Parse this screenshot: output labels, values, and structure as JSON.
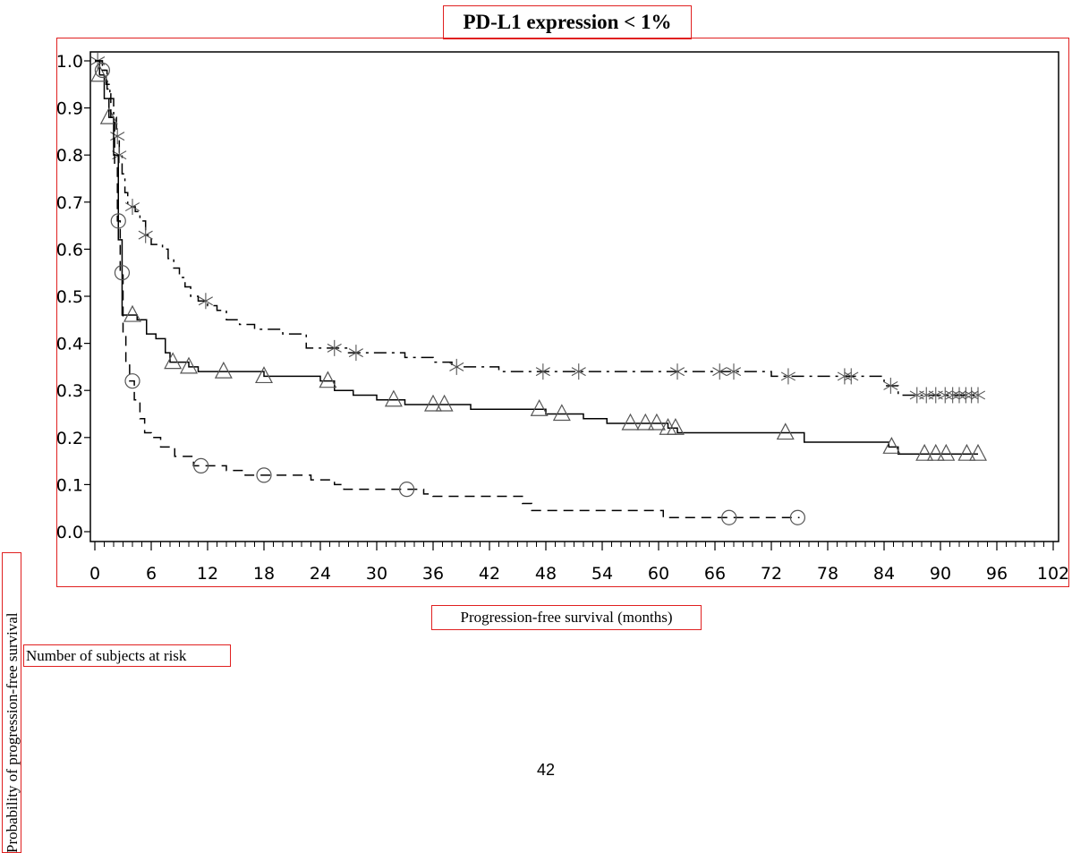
{
  "chart_data": {
    "type": "line",
    "title": "PD-L1 expression < 1%",
    "xlabel": "Progression-free survival (months)",
    "ylabel": "Probability of progression-free survival",
    "xlim": [
      0,
      102
    ],
    "ylim": [
      0.0,
      1.0
    ],
    "x_ticks": [
      0,
      6,
      12,
      18,
      24,
      30,
      36,
      42,
      48,
      54,
      60,
      66,
      72,
      78,
      84,
      90,
      96,
      102
    ],
    "y_ticks": [
      "0.0",
      "0.1",
      "0.2",
      "0.3",
      "0.4",
      "0.5",
      "0.6",
      "0.7",
      "0.8",
      "0.9",
      "1.0"
    ],
    "grid": false,
    "series": [
      {
        "marker": "star",
        "line_style": "dash-dot",
        "steps": [
          [
            0,
            1.0
          ],
          [
            0.8,
            0.98
          ],
          [
            1.2,
            0.95
          ],
          [
            1.6,
            0.92
          ],
          [
            2.0,
            0.88
          ],
          [
            2.3,
            0.84
          ],
          [
            2.6,
            0.8
          ],
          [
            2.9,
            0.76
          ],
          [
            3.2,
            0.72
          ],
          [
            3.5,
            0.69
          ],
          [
            4.3,
            0.68
          ],
          [
            4.8,
            0.66
          ],
          [
            5.4,
            0.63
          ],
          [
            6.0,
            0.61
          ],
          [
            7.2,
            0.6
          ],
          [
            7.8,
            0.58
          ],
          [
            8.4,
            0.56
          ],
          [
            9.0,
            0.54
          ],
          [
            9.6,
            0.52
          ],
          [
            10.2,
            0.5
          ],
          [
            11.0,
            0.49
          ],
          [
            12.0,
            0.48
          ],
          [
            13.0,
            0.47
          ],
          [
            14.0,
            0.45
          ],
          [
            15.4,
            0.44
          ],
          [
            17.0,
            0.43
          ],
          [
            20.0,
            0.42
          ],
          [
            22.5,
            0.39
          ],
          [
            27.0,
            0.38
          ],
          [
            33.0,
            0.37
          ],
          [
            36.0,
            0.36
          ],
          [
            38.0,
            0.35
          ],
          [
            43.0,
            0.34
          ],
          [
            59.0,
            0.34
          ],
          [
            72.0,
            0.33
          ],
          [
            84.0,
            0.31
          ],
          [
            85.5,
            0.29
          ],
          [
            94.0,
            0.29
          ]
        ],
        "censor_x": [
          0.3,
          2.4,
          2.6,
          4.0,
          5.4,
          11.8,
          25.5,
          27.8,
          38.5,
          47.7,
          51.5,
          62.0,
          66.5,
          68.0,
          73.8,
          79.8,
          80.5,
          84.7,
          87.5,
          88.5,
          89.5,
          90.5,
          91.3,
          92.0,
          92.7,
          93.3,
          94.0
        ]
      },
      {
        "marker": "triangle",
        "line_style": "solid",
        "steps": [
          [
            0,
            1.0
          ],
          [
            0.5,
            0.97
          ],
          [
            1.0,
            0.92
          ],
          [
            1.5,
            0.88
          ],
          [
            2.0,
            0.8
          ],
          [
            2.5,
            0.62
          ],
          [
            2.9,
            0.46
          ],
          [
            4.5,
            0.45
          ],
          [
            5.5,
            0.42
          ],
          [
            6.5,
            0.41
          ],
          [
            7.5,
            0.38
          ],
          [
            8.0,
            0.36
          ],
          [
            10.0,
            0.35
          ],
          [
            11.0,
            0.34
          ],
          [
            18.0,
            0.33
          ],
          [
            24.0,
            0.32
          ],
          [
            25.5,
            0.3
          ],
          [
            27.5,
            0.29
          ],
          [
            30.0,
            0.28
          ],
          [
            33.0,
            0.27
          ],
          [
            36.0,
            0.27
          ],
          [
            40.0,
            0.26
          ],
          [
            46.0,
            0.26
          ],
          [
            48.0,
            0.25
          ],
          [
            52.0,
            0.24
          ],
          [
            54.5,
            0.23
          ],
          [
            57.0,
            0.23
          ],
          [
            61.0,
            0.22
          ],
          [
            62.0,
            0.21
          ],
          [
            75.5,
            0.19
          ],
          [
            84.5,
            0.18
          ],
          [
            85.5,
            0.165
          ],
          [
            94.0,
            0.165
          ]
        ],
        "censor_x": [
          0.5,
          1.5,
          4.0,
          8.3,
          10.0,
          13.7,
          18.0,
          24.8,
          31.8,
          36.0,
          37.2,
          47.3,
          49.7,
          57.0,
          58.6,
          59.8,
          61.0,
          61.8,
          73.5,
          84.8,
          88.3,
          89.5,
          90.6,
          92.8,
          94.0
        ]
      },
      {
        "marker": "circle",
        "line_style": "dashed",
        "steps": [
          [
            0,
            1.0
          ],
          [
            0.8,
            0.98
          ],
          [
            1.3,
            0.94
          ],
          [
            1.7,
            0.88
          ],
          [
            2.1,
            0.78
          ],
          [
            2.4,
            0.66
          ],
          [
            2.7,
            0.55
          ],
          [
            3.0,
            0.42
          ],
          [
            3.3,
            0.36
          ],
          [
            3.7,
            0.32
          ],
          [
            4.2,
            0.28
          ],
          [
            4.8,
            0.24
          ],
          [
            5.3,
            0.21
          ],
          [
            6.0,
            0.2
          ],
          [
            7.0,
            0.18
          ],
          [
            8.5,
            0.16
          ],
          [
            10.5,
            0.14
          ],
          [
            14.0,
            0.13
          ],
          [
            16.0,
            0.12
          ],
          [
            23.0,
            0.11
          ],
          [
            25.5,
            0.1
          ],
          [
            26.5,
            0.09
          ],
          [
            35.0,
            0.08
          ],
          [
            36.0,
            0.075
          ],
          [
            45.5,
            0.06
          ],
          [
            46.5,
            0.045
          ],
          [
            60.5,
            0.03
          ],
          [
            75.0,
            0.03
          ]
        ],
        "censor_x": [
          0.8,
          2.5,
          2.9,
          4.0,
          11.3,
          18.0,
          33.2,
          67.5,
          74.8
        ]
      }
    ]
  },
  "labels": {
    "risk_table": "Number of subjects at risk",
    "page_number": "42"
  }
}
